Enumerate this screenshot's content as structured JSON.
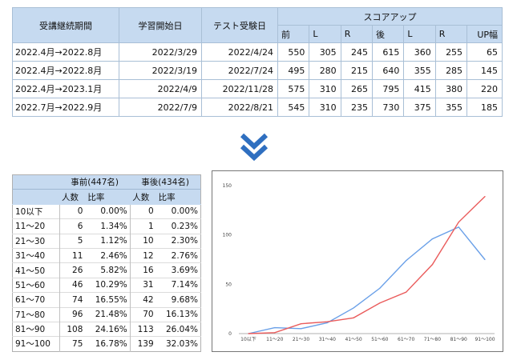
{
  "score_table": {
    "headers": {
      "period": "受講継続期間",
      "start": "学習開始日",
      "test": "テスト受験日",
      "group": "スコアアップ",
      "sub": [
        "前",
        "L",
        "R",
        "後",
        "L",
        "R",
        "UP幅"
      ]
    },
    "rows": [
      {
        "period": "2022.4月→2022.8月",
        "start": "2022/3/29",
        "test": "2022/4/24",
        "vals": [
          "550",
          "305",
          "245",
          "615",
          "360",
          "255",
          "65"
        ]
      },
      {
        "period": "2022.4月→2022.8月",
        "start": "2022/3/19",
        "test": "2022/7/24",
        "vals": [
          "495",
          "280",
          "215",
          "640",
          "355",
          "285",
          "145"
        ]
      },
      {
        "period": "2022.4月→2023.1月",
        "start": "2022/4/9",
        "test": "2022/11/28",
        "vals": [
          "575",
          "310",
          "265",
          "795",
          "415",
          "380",
          "220"
        ]
      },
      {
        "period": "2022.7月→2022.9月",
        "start": "2022/7/9",
        "test": "2022/8/21",
        "vals": [
          "545",
          "310",
          "235",
          "730",
          "375",
          "355",
          "185"
        ]
      }
    ]
  },
  "arrow_icon": "double-chevron-down-icon",
  "dist_table": {
    "before_label": "事前(447名)",
    "after_label": "事後(434名)",
    "col_count": "人数",
    "col_ratio": "比率",
    "rows": [
      {
        "range": "10以下",
        "b_n": "0",
        "b_r": "0.00%",
        "a_n": "0",
        "a_r": "0.00%"
      },
      {
        "range": "11～20",
        "b_n": "6",
        "b_r": "1.34%",
        "a_n": "1",
        "a_r": "0.23%"
      },
      {
        "range": "21～30",
        "b_n": "5",
        "b_r": "1.12%",
        "a_n": "10",
        "a_r": "2.30%"
      },
      {
        "range": "31～40",
        "b_n": "11",
        "b_r": "2.46%",
        "a_n": "12",
        "a_r": "2.76%"
      },
      {
        "range": "41～50",
        "b_n": "26",
        "b_r": "5.82%",
        "a_n": "16",
        "a_r": "3.69%"
      },
      {
        "range": "51～60",
        "b_n": "46",
        "b_r": "10.29%",
        "a_n": "31",
        "a_r": "7.14%"
      },
      {
        "range": "61～70",
        "b_n": "74",
        "b_r": "16.55%",
        "a_n": "42",
        "a_r": "9.68%"
      },
      {
        "range": "71～80",
        "b_n": "96",
        "b_r": "21.48%",
        "a_n": "70",
        "a_r": "16.13%"
      },
      {
        "range": "81～90",
        "b_n": "108",
        "b_r": "24.16%",
        "a_n": "113",
        "a_r": "26.04%"
      },
      {
        "range": "91～100",
        "b_n": "75",
        "b_r": "16.78%",
        "a_n": "139",
        "a_r": "32.03%"
      }
    ]
  },
  "chart_data": {
    "type": "line",
    "categories": [
      "10以下",
      "11～20",
      "21～30",
      "31～40",
      "41～50",
      "51～60",
      "61～70",
      "71～80",
      "81～90",
      "91～100"
    ],
    "series": [
      {
        "values": [
          0,
          6,
          5,
          11,
          26,
          46,
          74,
          96,
          108,
          75
        ],
        "color": "#6aa0e8"
      },
      {
        "values": [
          0,
          1,
          10,
          12,
          16,
          31,
          42,
          70,
          113,
          139
        ],
        "color": "#ea5c5c"
      }
    ],
    "ylim": [
      0,
      150
    ],
    "yticks": [
      "0",
      "50",
      "100",
      "150"
    ],
    "grid": false,
    "title": "",
    "xlabel": "",
    "ylabel": ""
  }
}
